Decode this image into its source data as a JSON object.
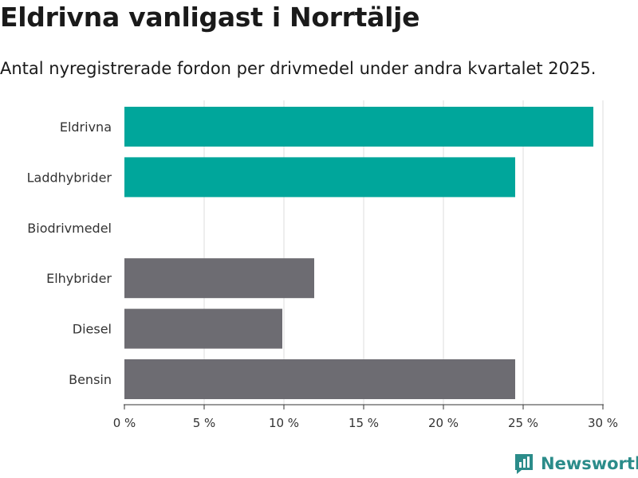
{
  "title": "Eldrivna vanligast i Norrtälje",
  "subtitle": "Antal nyregistrerade fordon per drivmedel under andra kvartalet 2025.",
  "brand": {
    "name": "Newsworthy",
    "color": "#2b8c8a"
  },
  "chart_data": {
    "type": "bar",
    "orientation": "horizontal",
    "title": "Eldrivna vanligast i Norrtälje",
    "subtitle": "Antal nyregistrerade fordon per drivmedel under andra kvartalet 2025.",
    "categories": [
      "Eldrivna",
      "Laddhybrider",
      "Biodrivmedel",
      "Elhybrider",
      "Diesel",
      "Bensin"
    ],
    "values": [
      29.4,
      24.5,
      0,
      11.9,
      9.9,
      24.5
    ],
    "colors": [
      "#00a69b",
      "#00a69b",
      "#00a69b",
      "#6d6c72",
      "#6d6c72",
      "#6d6c72"
    ],
    "xlim": [
      0,
      30
    ],
    "xticks": [
      0,
      5,
      10,
      15,
      20,
      25,
      30
    ],
    "xtick_labels": [
      "0 %",
      "5 %",
      "10 %",
      "15 %",
      "20 %",
      "25 %",
      "30 %"
    ],
    "grid": true
  }
}
